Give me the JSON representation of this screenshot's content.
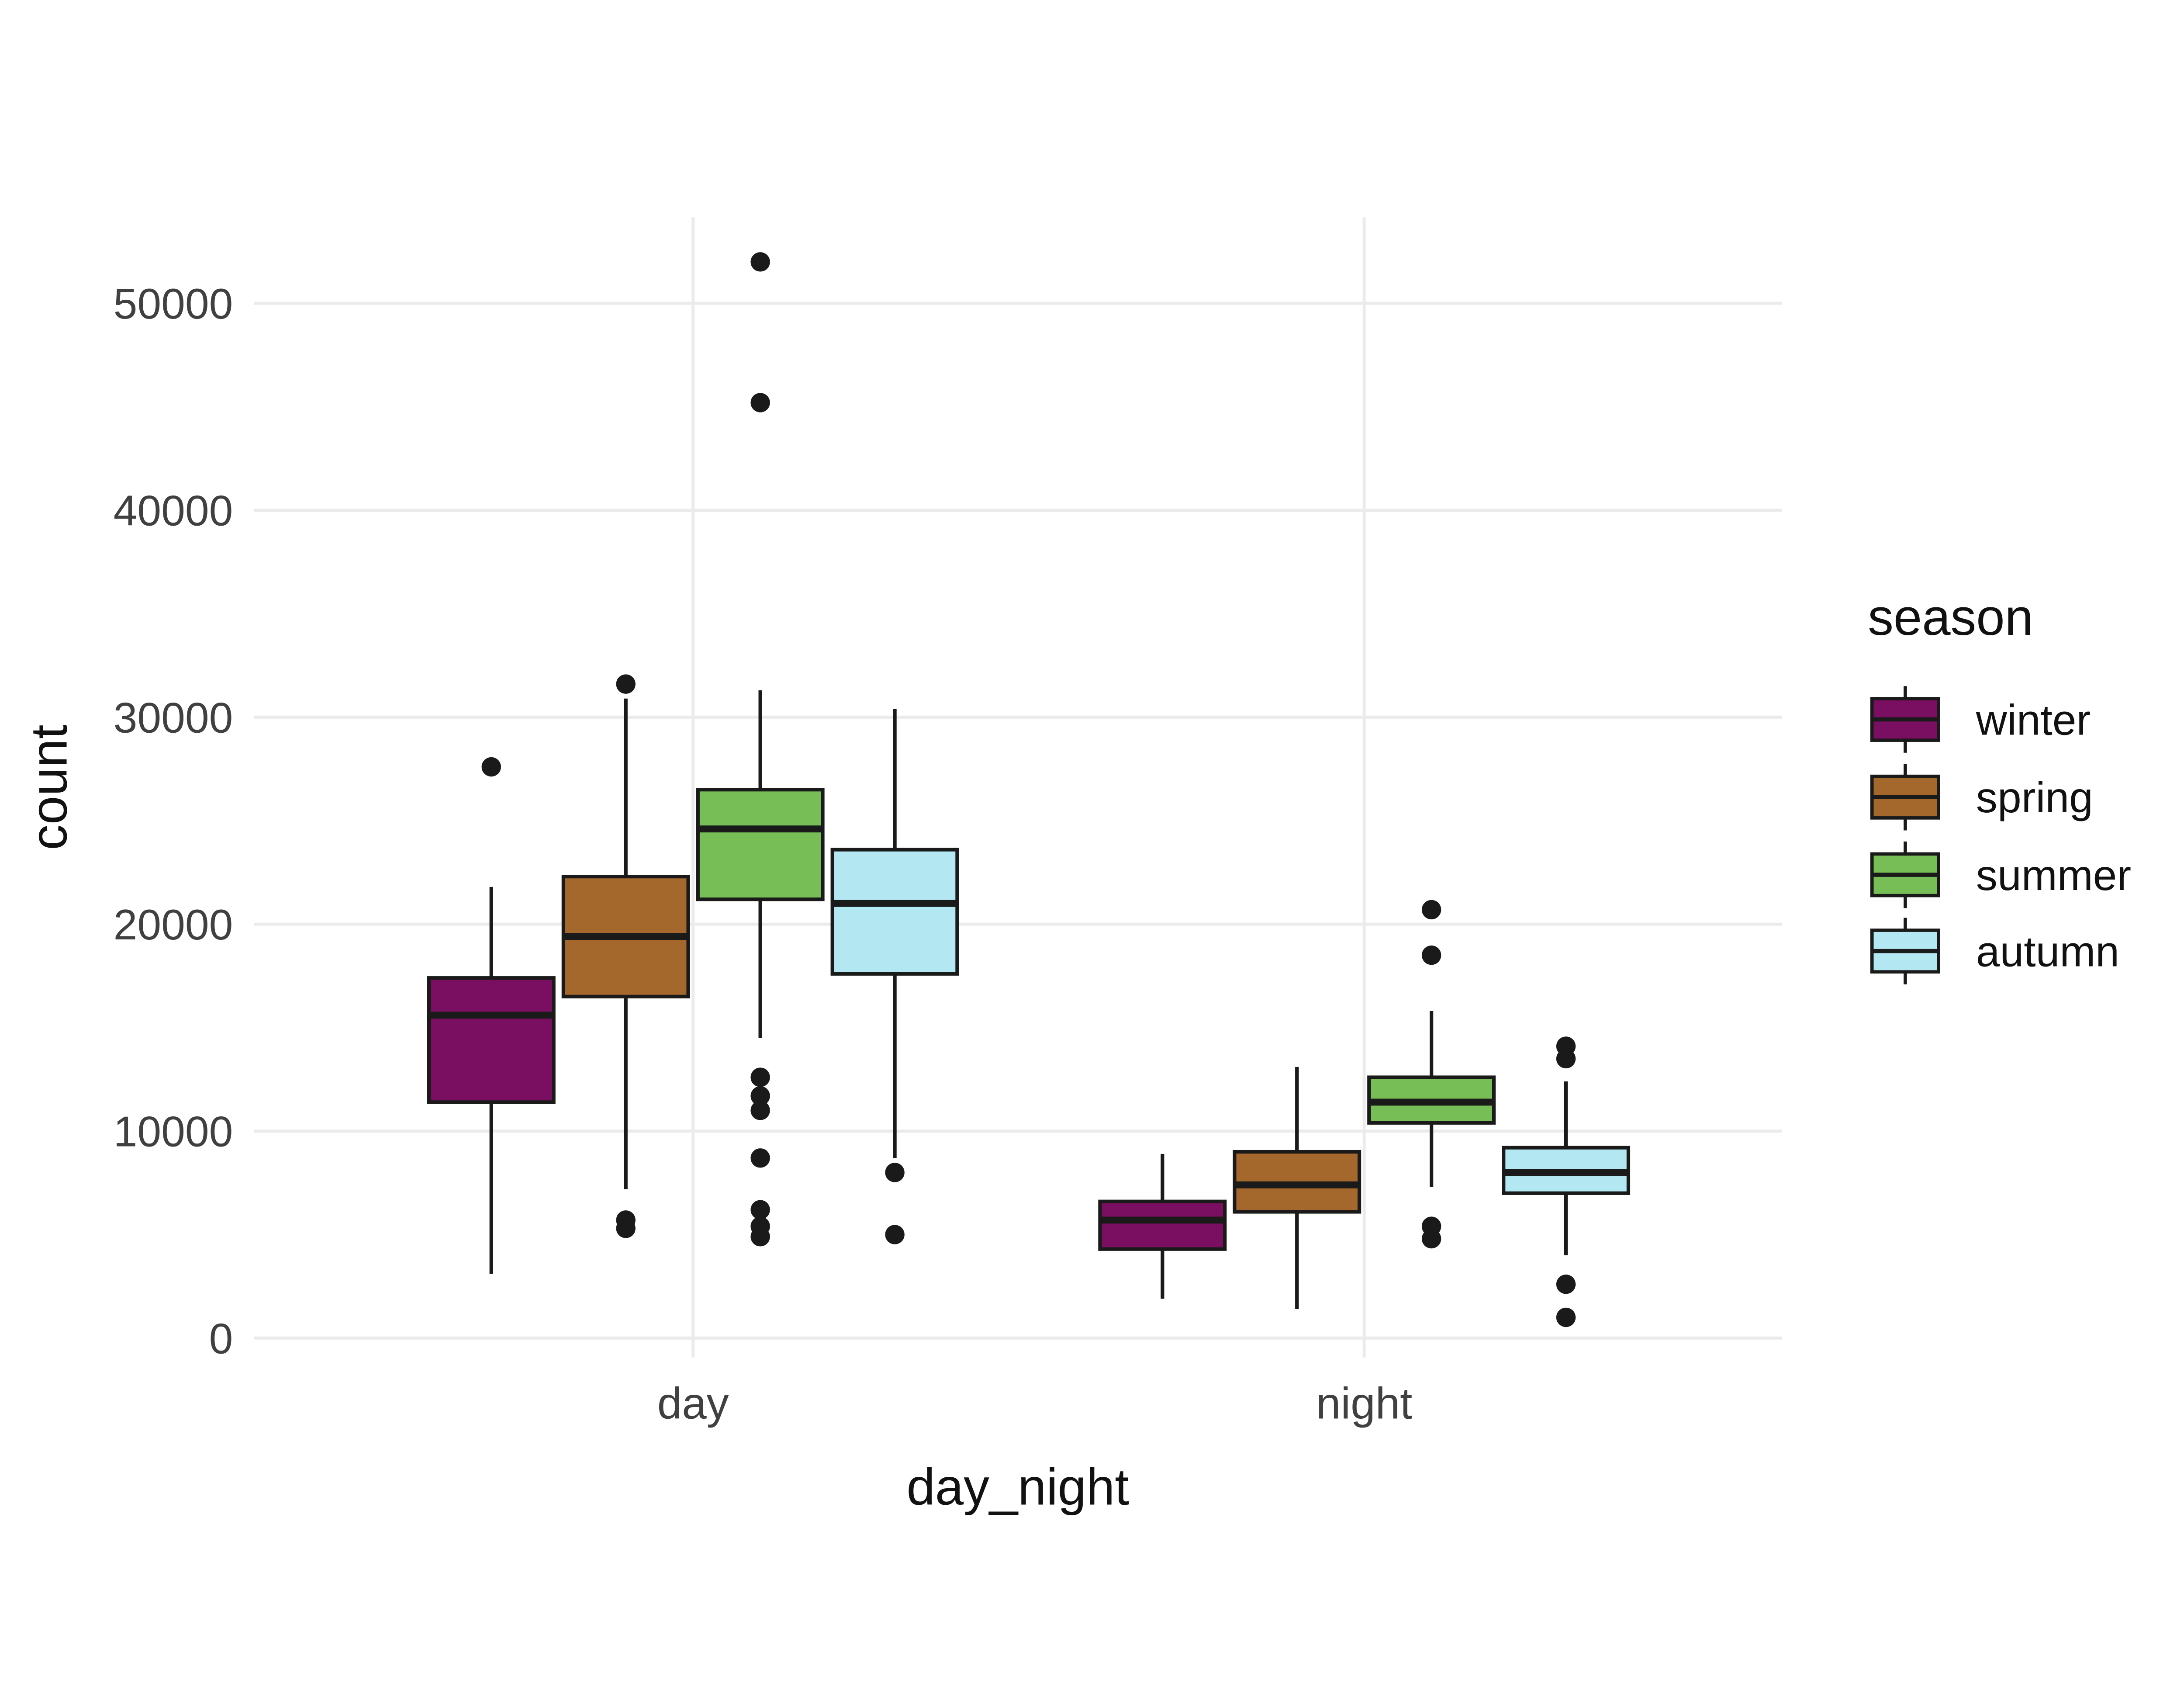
{
  "chart_data": {
    "type": "boxplot",
    "title": "",
    "xlabel": "day_night",
    "ylabel": "count",
    "legend_title": "season",
    "legend_position": "right",
    "categories": [
      "day",
      "night"
    ],
    "y_ticks": [
      0,
      10000,
      20000,
      30000,
      40000,
      50000
    ],
    "y_tick_labels": [
      "0",
      "10000",
      "20000",
      "30000",
      "40000",
      "50000"
    ],
    "ylim": [
      0,
      52500
    ],
    "grid": true,
    "series": [
      {
        "name": "winter",
        "color": "#7A0E61",
        "boxes": [
          {
            "category": "day",
            "whisker_low": 3100,
            "q1": 11400,
            "median": 15600,
            "q3": 17400,
            "whisker_high": 21800,
            "outliers": [
              27600
            ]
          },
          {
            "category": "night",
            "whisker_low": 1900,
            "q1": 4300,
            "median": 5700,
            "q3": 6600,
            "whisker_high": 8900,
            "outliers": []
          }
        ]
      },
      {
        "name": "spring",
        "color": "#A5682C",
        "boxes": [
          {
            "category": "day",
            "whisker_low": 7200,
            "q1": 16500,
            "median": 19400,
            "q3": 22300,
            "whisker_high": 30900,
            "outliers": [
              31600,
              5700,
              5300
            ]
          },
          {
            "category": "night",
            "whisker_low": 1400,
            "q1": 6100,
            "median": 7400,
            "q3": 9000,
            "whisker_high": 13100,
            "outliers": []
          }
        ]
      },
      {
        "name": "summer",
        "color": "#77BE56",
        "boxes": [
          {
            "category": "day",
            "whisker_low": 14500,
            "q1": 21200,
            "median": 24600,
            "q3": 26500,
            "whisker_high": 31300,
            "outliers": [
              52000,
              45200,
              12600,
              11700,
              11000,
              8700,
              6200,
              5400,
              4900
            ]
          },
          {
            "category": "night",
            "whisker_low": 7300,
            "q1": 10400,
            "median": 11400,
            "q3": 12600,
            "whisker_high": 15800,
            "outliers": [
              20700,
              18500,
              5400,
              4800
            ]
          }
        ]
      },
      {
        "name": "autumn",
        "color": "#B3E7F2",
        "boxes": [
          {
            "category": "day",
            "whisker_low": 8700,
            "q1": 17600,
            "median": 21000,
            "q3": 23600,
            "whisker_high": 30400,
            "outliers": [
              8000,
              5000
            ]
          },
          {
            "category": "night",
            "whisker_low": 4000,
            "q1": 7000,
            "median": 8000,
            "q3": 9200,
            "whisker_high": 12400,
            "outliers": [
              14100,
              13500,
              2600,
              1000
            ]
          }
        ]
      }
    ],
    "style": {
      "background": "#FFFFFF",
      "grid_color": "#EBEBEB",
      "box_stroke": "#1A1A1A",
      "tick_label_color": "#404040",
      "axis_title_color": "#111111"
    }
  }
}
